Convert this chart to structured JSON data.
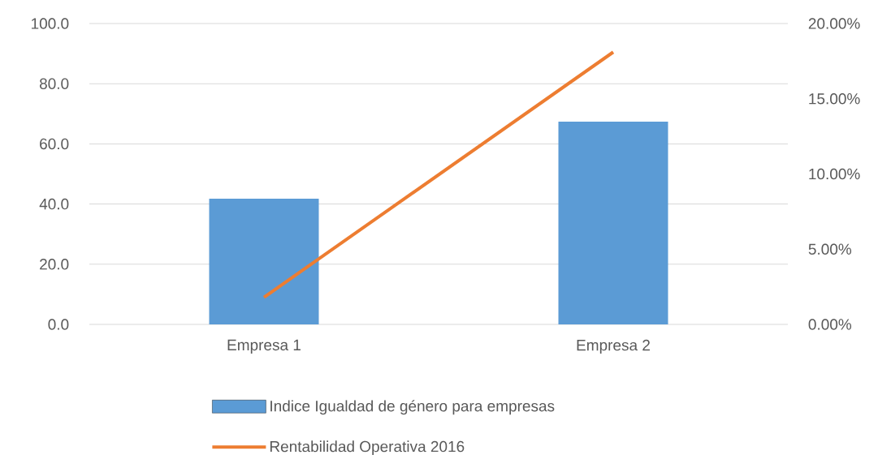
{
  "chart_data": {
    "type": "bar",
    "categories": [
      "Empresa 1",
      "Empresa 2"
    ],
    "series": [
      {
        "name": "Indice Igualdad de género para empresas",
        "color": "#5b9bd5",
        "values": [
          41.8,
          67.4
        ]
      },
      {
        "name": "Rentabilidad Operativa 2016",
        "type": "line",
        "axis": "y2",
        "color": "#ed7d31",
        "values": [
          1.8,
          18.1
        ]
      }
    ],
    "ylim": [
      0,
      100
    ],
    "yticks": [
      {
        "value": 0,
        "label": "0.0"
      },
      {
        "value": 20,
        "label": "20.0"
      },
      {
        "value": 40,
        "label": "40.0"
      },
      {
        "value": 60,
        "label": "60.0"
      },
      {
        "value": 80,
        "label": "80.0"
      },
      {
        "value": 100,
        "label": "100.0"
      }
    ],
    "y2lim": [
      0,
      20
    ],
    "y2ticks": [
      {
        "value": 0,
        "label": "0.00%"
      },
      {
        "value": 5,
        "label": "5.00%"
      },
      {
        "value": 10,
        "label": "10.00%"
      },
      {
        "value": 15,
        "label": "15.00%"
      },
      {
        "value": 20,
        "label": "20.00%"
      }
    ],
    "grid": "y",
    "legend": "bottom",
    "marker": "none"
  }
}
